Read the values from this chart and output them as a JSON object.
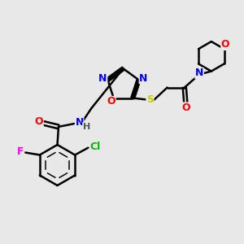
{
  "bg_color": "#e8e8e8",
  "bond_color": "#000000",
  "bond_width": 1.8,
  "atom_colors": {
    "N": "#0000ff",
    "O": "#ff0000",
    "S": "#cccc00",
    "F": "#ff00ff",
    "Cl": "#00bb00",
    "H": "#555555"
  },
  "figsize": [
    3.0,
    3.0
  ],
  "dpi": 100
}
